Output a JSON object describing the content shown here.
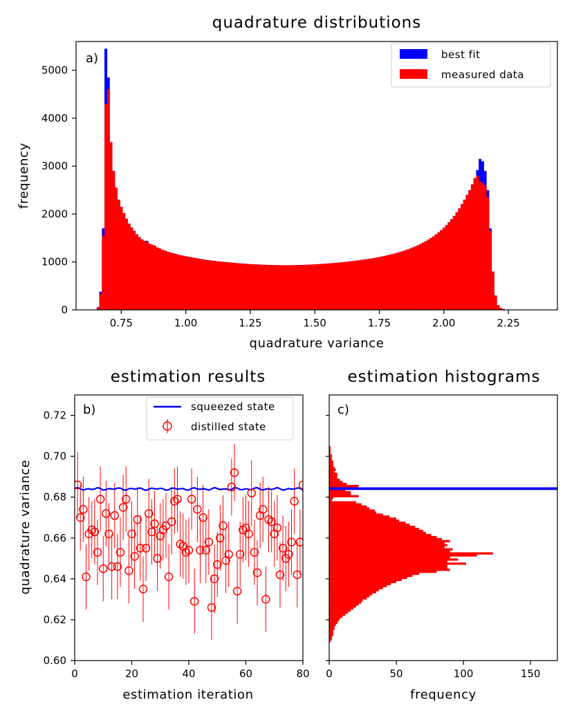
{
  "colors": {
    "fit": "#0000ff",
    "data": "#ff0000",
    "axis": "#000000"
  },
  "chart_data": [
    {
      "type": "bar",
      "panel": "a)",
      "title": "quadrature distributions",
      "xlabel": "quadrature variance",
      "ylabel": "frequency",
      "xlim": [
        0.575,
        2.44
      ],
      "ylim": [
        0,
        5600
      ],
      "xticks": [
        0.75,
        1.0,
        1.25,
        1.5,
        1.75,
        2.0,
        2.25
      ],
      "xtick_labels": [
        "0.75",
        "1.00",
        "1.25",
        "1.50",
        "1.75",
        "2.00",
        "2.25"
      ],
      "yticks": [
        0,
        1000,
        2000,
        3000,
        4000,
        5000
      ],
      "ytick_labels": [
        "0",
        "1000",
        "2000",
        "3000",
        "4000",
        "5000"
      ],
      "legend_position": "top-right",
      "bin_width": 0.01,
      "x_start": 0.645,
      "series": [
        {
          "name": "best fit",
          "color": "#0000ff",
          "values": [
            0,
            60,
            380,
            1700,
            5450,
            4850,
            3500,
            2900,
            2550,
            2300,
            2150,
            2020,
            1900,
            1800,
            1720,
            1650,
            1580,
            1520,
            1470,
            1440,
            1440,
            1380,
            1360,
            1340,
            1300,
            1280,
            1255,
            1235,
            1215,
            1195,
            1185,
            1170,
            1155,
            1140,
            1130,
            1120,
            1110,
            1100,
            1090,
            1080,
            1070,
            1060,
            1050,
            1040,
            1035,
            1028,
            1022,
            1015,
            1010,
            1005,
            1000,
            995,
            990,
            985,
            980,
            975,
            970,
            965,
            962,
            958,
            955,
            952,
            950,
            948,
            945,
            942,
            940,
            938,
            936,
            935,
            934,
            933,
            932,
            932,
            932,
            932,
            933,
            934,
            935,
            936,
            938,
            940,
            942,
            944,
            947,
            950,
            953,
            956,
            960,
            964,
            968,
            972,
            976,
            981,
            986,
            991,
            996,
            1002,
            1008,
            1014,
            1020,
            1027,
            1034,
            1041,
            1049,
            1057,
            1065,
            1074,
            1083,
            1093,
            1103,
            1114,
            1125,
            1137,
            1150,
            1163,
            1177,
            1192,
            1208,
            1225,
            1243,
            1262,
            1282,
            1303,
            1326,
            1350,
            1376,
            1404,
            1434,
            1466,
            1500,
            1537,
            1577,
            1620,
            1666,
            1716,
            1770,
            1829,
            1893,
            1962,
            2037,
            2118,
            2206,
            2300,
            2400,
            2500,
            2620,
            2750,
            2920,
            3150,
            3100,
            2900,
            2500,
            1700,
            800,
            300,
            100,
            40,
            20,
            5
          ]
        },
        {
          "name": "measured data",
          "color": "#ff0000",
          "values": [
            0,
            50,
            330,
            1550,
            4300,
            4600,
            3500,
            2900,
            2550,
            2300,
            2150,
            2020,
            1900,
            1800,
            1720,
            1650,
            1580,
            1520,
            1470,
            1440,
            1420,
            1380,
            1360,
            1340,
            1300,
            1280,
            1255,
            1235,
            1215,
            1195,
            1185,
            1170,
            1155,
            1140,
            1130,
            1120,
            1110,
            1100,
            1090,
            1080,
            1070,
            1060,
            1050,
            1040,
            1035,
            1028,
            1022,
            1015,
            1010,
            1005,
            1000,
            995,
            990,
            985,
            980,
            975,
            970,
            965,
            962,
            958,
            955,
            952,
            950,
            948,
            945,
            942,
            940,
            938,
            936,
            935,
            934,
            933,
            932,
            932,
            932,
            932,
            933,
            934,
            935,
            936,
            938,
            940,
            942,
            944,
            947,
            950,
            953,
            956,
            960,
            964,
            968,
            972,
            976,
            981,
            986,
            991,
            996,
            1002,
            1008,
            1014,
            1020,
            1027,
            1034,
            1041,
            1049,
            1057,
            1065,
            1074,
            1083,
            1093,
            1103,
            1114,
            1125,
            1137,
            1150,
            1163,
            1177,
            1192,
            1208,
            1225,
            1243,
            1262,
            1282,
            1303,
            1326,
            1350,
            1376,
            1404,
            1434,
            1466,
            1500,
            1537,
            1577,
            1620,
            1666,
            1716,
            1770,
            1829,
            1893,
            1962,
            2037,
            2118,
            2206,
            2300,
            2400,
            2500,
            2620,
            2750,
            2800,
            2680,
            2650,
            2600,
            2350,
            1650,
            800,
            300,
            100,
            40,
            20,
            5
          ]
        }
      ]
    },
    {
      "type": "scatter",
      "panel": "b)",
      "title": "estimation results",
      "xlabel": "estimation iteration",
      "ylabel": "quadrature variance",
      "xlim": [
        0,
        80
      ],
      "ylim": [
        0.6,
        0.73
      ],
      "xticks": [
        0,
        20,
        40,
        60,
        80
      ],
      "xtick_labels": [
        "0",
        "20",
        "40",
        "60",
        "80"
      ],
      "yticks": [
        0.6,
        0.62,
        0.64,
        0.66,
        0.68,
        0.7,
        0.72
      ],
      "ytick_labels": [
        "0.60",
        "0.62",
        "0.64",
        "0.66",
        "0.68",
        "0.70",
        "0.72"
      ],
      "legend_position": "top-right",
      "squeezed_state": {
        "name": "squeezed state",
        "color": "#0000ff",
        "y": 0.684
      },
      "distilled_state": {
        "name": "distilled state",
        "color": "#ff0000",
        "x": [
          1,
          2,
          3,
          4,
          5,
          6,
          7,
          8,
          9,
          10,
          11,
          12,
          13,
          14,
          15,
          16,
          17,
          18,
          19,
          20,
          21,
          22,
          23,
          24,
          25,
          26,
          27,
          28,
          29,
          30,
          31,
          32,
          33,
          34,
          35,
          36,
          37,
          38,
          39,
          40,
          41,
          42,
          43,
          44,
          45,
          46,
          47,
          48,
          49,
          50,
          51,
          52,
          53,
          54,
          55,
          56,
          57,
          58,
          59,
          60,
          61,
          62,
          63,
          64,
          65,
          66,
          67,
          68,
          69,
          70,
          71,
          72,
          73,
          74,
          75,
          76,
          77,
          78,
          79,
          80
        ],
        "y": [
          0.686,
          0.67,
          0.674,
          0.641,
          0.662,
          0.664,
          0.663,
          0.653,
          0.679,
          0.645,
          0.672,
          0.662,
          0.646,
          0.671,
          0.646,
          0.653,
          0.675,
          0.679,
          0.644,
          0.662,
          0.651,
          0.669,
          0.655,
          0.635,
          0.655,
          0.672,
          0.663,
          0.667,
          0.65,
          0.661,
          0.664,
          0.666,
          0.641,
          0.668,
          0.678,
          0.679,
          0.657,
          0.656,
          0.653,
          0.654,
          0.679,
          0.629,
          0.674,
          0.654,
          0.67,
          0.654,
          0.658,
          0.626,
          0.64,
          0.647,
          0.66,
          0.666,
          0.649,
          0.652,
          0.685,
          0.692,
          0.634,
          0.652,
          0.664,
          0.665,
          0.662,
          0.682,
          0.653,
          0.643,
          0.671,
          0.674,
          0.63,
          0.669,
          0.668,
          0.662,
          0.665,
          0.642,
          0.655,
          0.65,
          0.652,
          0.658,
          0.678,
          0.642,
          0.658,
          0.686
        ],
        "err": [
          0.016,
          0.016,
          0.016,
          0.016,
          0.018,
          0.014,
          0.016,
          0.016,
          0.016,
          0.016,
          0.016,
          0.015,
          0.016,
          0.016,
          0.016,
          0.017,
          0.016,
          0.016,
          0.016,
          0.016,
          0.016,
          0.016,
          0.016,
          0.016,
          0.016,
          0.017,
          0.016,
          0.016,
          0.016,
          0.016,
          0.015,
          0.016,
          0.016,
          0.016,
          0.016,
          0.016,
          0.016,
          0.016,
          0.016,
          0.016,
          0.015,
          0.016,
          0.016,
          0.016,
          0.016,
          0.016,
          0.016,
          0.016,
          0.017,
          0.016,
          0.016,
          0.015,
          0.016,
          0.016,
          0.014,
          0.014,
          0.016,
          0.016,
          0.016,
          0.016,
          0.016,
          0.016,
          0.016,
          0.016,
          0.016,
          0.016,
          0.016,
          0.016,
          0.015,
          0.016,
          0.016,
          0.016,
          0.016,
          0.016,
          0.016,
          0.016,
          0.016,
          0.016,
          0.016,
          0.016
        ]
      }
    },
    {
      "type": "bar",
      "orientation": "horizontal",
      "panel": "c)",
      "title": "estimation histograms",
      "xlabel": "frequency",
      "ylabel": "",
      "xlim": [
        0,
        170
      ],
      "ylim": [
        0.6,
        0.73
      ],
      "xticks": [
        0,
        50,
        100,
        150
      ],
      "xtick_labels": [
        "0",
        "50",
        "100",
        "150"
      ],
      "squeezed_state": {
        "color": "#0000ff",
        "y_min": 0.6835,
        "y_max": 0.6848,
        "count": 170
      },
      "bin_start": 0.609,
      "bin_width": 0.001,
      "counts": [
        1,
        2,
        2,
        3,
        3,
        3,
        4,
        4,
        5,
        6,
        7,
        8,
        10,
        12,
        14,
        16,
        18,
        20,
        22,
        24,
        25,
        28,
        30,
        32,
        35,
        37,
        40,
        43,
        46,
        50,
        54,
        58,
        62,
        67,
        80,
        90,
        88,
        88,
        102,
        88,
        96,
        90,
        110,
        122,
        90,
        92,
        86,
        88,
        86,
        90,
        84,
        80,
        76,
        72,
        70,
        67,
        64,
        60,
        57,
        52,
        50,
        45,
        40,
        35,
        34,
        30,
        28,
        24,
        20,
        2,
        3,
        22,
        16,
        16,
        12,
        20,
        22,
        13,
        10,
        8,
        6,
        6,
        6,
        4,
        5,
        4,
        3,
        3,
        3,
        2,
        2,
        2,
        1,
        1,
        1,
        1
      ]
    }
  ]
}
